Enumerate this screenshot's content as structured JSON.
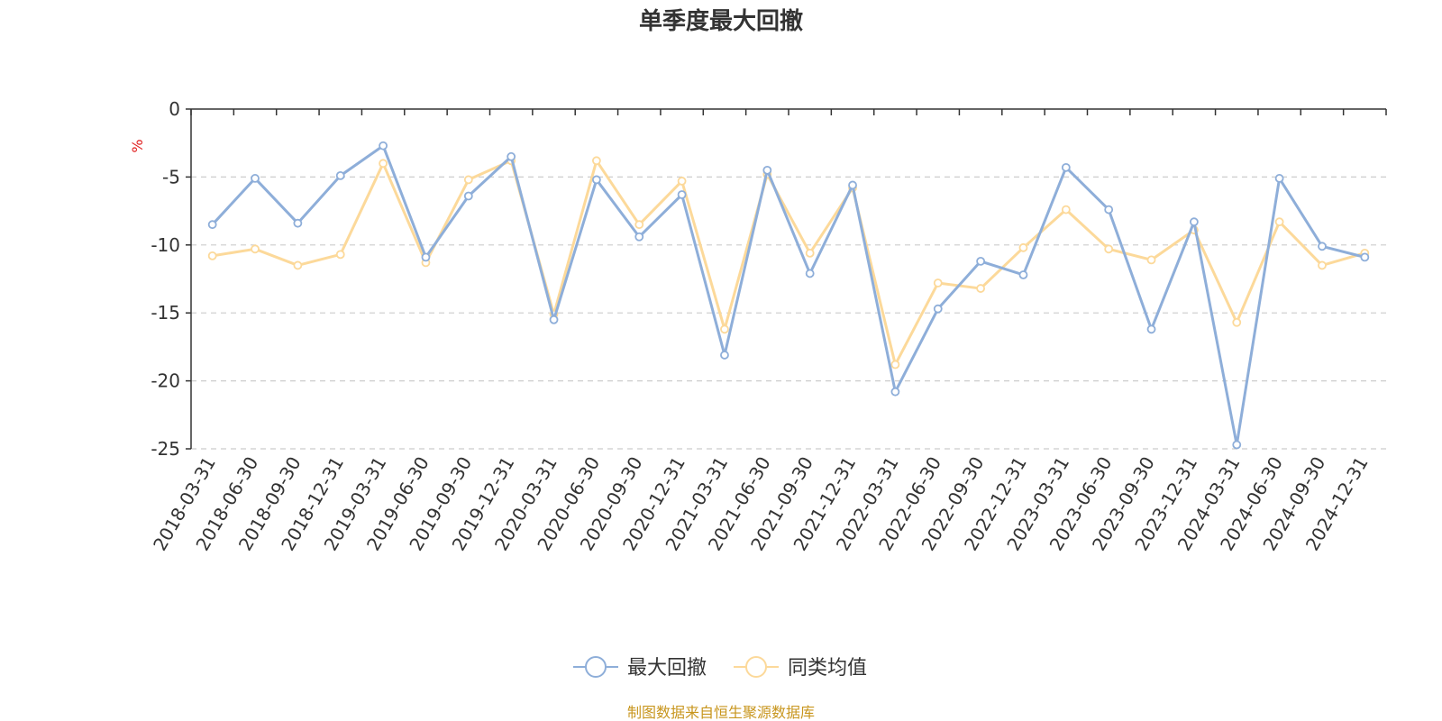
{
  "chart_data": {
    "type": "line",
    "title": "单季度最大回撤",
    "ylabel": "%",
    "ylim": [
      -25,
      0
    ],
    "yticks": [
      0,
      -5,
      -10,
      -15,
      -20,
      -25
    ],
    "grid": "horizontal dashed",
    "legend_position": "bottom-center",
    "categories": [
      "2018-03-31",
      "2018-06-30",
      "2018-09-30",
      "2018-12-31",
      "2019-03-31",
      "2019-06-30",
      "2019-09-30",
      "2019-12-31",
      "2020-03-31",
      "2020-06-30",
      "2020-09-30",
      "2020-12-31",
      "2021-03-31",
      "2021-06-30",
      "2021-09-30",
      "2021-12-31",
      "2022-03-31",
      "2022-06-30",
      "2022-09-30",
      "2022-12-31",
      "2023-03-31",
      "2023-06-30",
      "2023-09-30",
      "2023-12-31",
      "2024-03-31",
      "2024-06-30",
      "2024-09-30",
      "2024-12-31"
    ],
    "series": [
      {
        "name": "最大回撤",
        "color": "#8eaed9",
        "values": [
          -8.5,
          -5.1,
          -8.4,
          -4.9,
          -2.7,
          -10.9,
          -6.4,
          -3.5,
          -15.5,
          -5.2,
          -9.4,
          -6.3,
          -18.1,
          -4.5,
          -12.1,
          -5.6,
          -20.8,
          -14.7,
          -11.2,
          -12.2,
          -4.3,
          -7.4,
          -16.2,
          -8.3,
          -24.7,
          -5.1,
          -10.1,
          -10.9
        ]
      },
      {
        "name": "同类均值",
        "color": "#fcd99a",
        "values": [
          -10.8,
          -10.3,
          -11.5,
          -10.7,
          -4.0,
          -11.3,
          -5.2,
          -3.8,
          -15.1,
          -3.8,
          -8.5,
          -5.3,
          -16.2,
          -4.8,
          -10.6,
          -5.8,
          -18.8,
          -12.8,
          -13.2,
          -10.2,
          -7.4,
          -10.3,
          -11.1,
          -8.9,
          -15.7,
          -8.3,
          -11.5,
          -10.6
        ]
      }
    ],
    "source": "制图数据来自恒生聚源数据库"
  }
}
